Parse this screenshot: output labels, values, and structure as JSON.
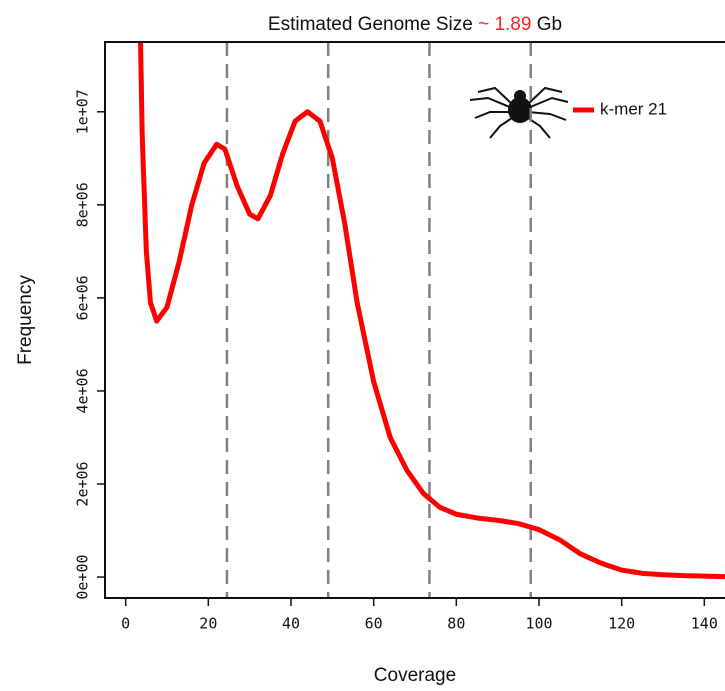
{
  "chart_data": {
    "type": "line",
    "title_parts": [
      "Estimated Genome Size",
      "~ 1.89",
      "Gb"
    ],
    "title_colors": [
      "#111111",
      "#ff2020",
      "#111111"
    ],
    "x_label": "Coverage",
    "y_label": "Frequency",
    "xlim": [
      -5,
      145
    ],
    "ylim": [
      -450000,
      11500000
    ],
    "xticks": [
      0,
      20,
      40,
      60,
      80,
      100,
      120,
      140
    ],
    "yticks": [
      {
        "value": 0,
        "label": "0e+00"
      },
      {
        "value": 2000000,
        "label": "2e+06"
      },
      {
        "value": 4000000,
        "label": "4e+06"
      },
      {
        "value": 6000000,
        "label": "6e+06"
      },
      {
        "value": 8000000,
        "label": "8e+06"
      },
      {
        "value": 10000000,
        "label": "1e+07"
      }
    ],
    "vlines": [
      24.5,
      49,
      73.5,
      98
    ],
    "vline_color": "#808080",
    "legend": "top-right",
    "series": [
      {
        "name": "k-mer 21",
        "color": "#ff0000",
        "x": [
          3.6,
          4,
          5,
          6,
          7.5,
          10,
          13,
          16,
          19,
          22,
          24,
          27,
          30,
          32,
          35,
          38,
          41,
          44,
          47,
          50,
          53,
          56,
          60,
          64,
          68,
          72,
          76,
          80,
          85,
          90,
          95,
          100,
          105,
          110,
          115,
          120,
          125,
          130,
          135,
          140,
          145
        ],
        "values": [
          11500000,
          9500000,
          7000000,
          5900000,
          5500000,
          5800000,
          6800000,
          8000000,
          8900000,
          9300000,
          9200000,
          8400000,
          7800000,
          7700000,
          8200000,
          9100000,
          9800000,
          10000000,
          9800000,
          9000000,
          7600000,
          5900000,
          4200000,
          3000000,
          2300000,
          1800000,
          1500000,
          1350000,
          1270000,
          1220000,
          1150000,
          1020000,
          800000,
          500000,
          300000,
          150000,
          80000,
          50000,
          30000,
          20000,
          10000
        ]
      }
    ]
  }
}
